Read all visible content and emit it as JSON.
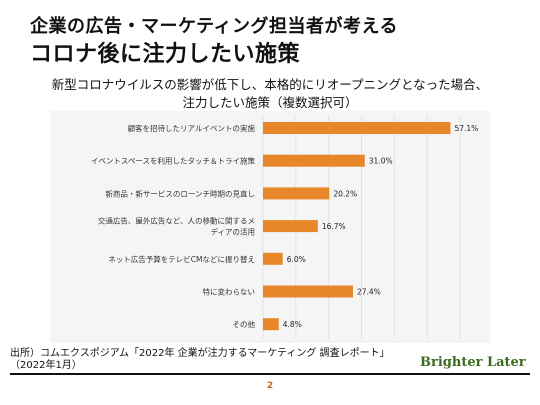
{
  "header": {
    "title_line1": "企業の広告・マーケティング担当者が考える",
    "title_line2": "コロナ後に注力したい施策"
  },
  "chart_data": {
    "type": "bar",
    "orientation": "horizontal",
    "subtitle_line1": "新型コロナウイルスの影響が低下し、本格的にリオープニングとなった場合、",
    "subtitle_line2": "注力したい施策（複数選択可）",
    "categories": [
      "顧客を招待したリアルイベントの実施",
      "イベントスペースを利用したタッチ＆トライ施策",
      "新商品・新サービスのローンチ時期の見直し",
      "交通広告、屋外広告など、人の移動に関するメディアの活用",
      "ネット広告予算をテレビCMなどに振り替え",
      "特に変わらない",
      "その他"
    ],
    "category_lines": [
      [
        "顧客を招待したリアルイベントの実施"
      ],
      [
        "イベントスペースを利用したタッチ＆トライ施策"
      ],
      [
        "新商品・新サービスのローンチ時期の見直し"
      ],
      [
        "交通広告、屋外広告など、人の移動に関するメ",
        "ディアの活用"
      ],
      [
        "ネット広告予算をテレビCMなどに振り替え"
      ],
      [
        "特に変わらない"
      ],
      [
        "その他"
      ]
    ],
    "values": [
      57.1,
      31.0,
      20.2,
      16.7,
      6.0,
      27.4,
      4.8
    ],
    "value_labels": [
      "57.1%",
      "31.0%",
      "20.2%",
      "16.7%",
      "6.0%",
      "27.4%",
      "4.8%"
    ],
    "xlim": [
      0,
      60
    ],
    "bar_color": "#e8862a",
    "grid": true
  },
  "footer": {
    "source_line1": "出所）コムエクスポジアム「2022年 企業が注力するマーケティング 調査レポート」",
    "source_line2": "（2022年1月）",
    "brand": "Brighter Later",
    "page_number": "2"
  }
}
